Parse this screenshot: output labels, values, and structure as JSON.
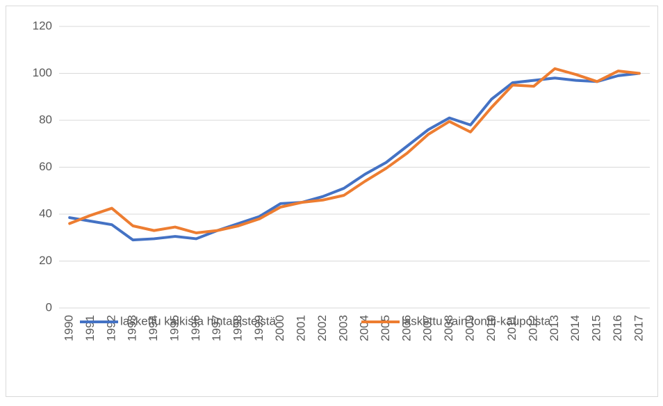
{
  "chart_data": {
    "type": "line",
    "categories": [
      "1990",
      "1991",
      "1992",
      "1993",
      "1994",
      "1995",
      "1996",
      "1997",
      "1998",
      "1999",
      "2000",
      "2001",
      "2002",
      "2003",
      "2004",
      "2005",
      "2006",
      "2007",
      "2008",
      "2009",
      "2010",
      "2011",
      "2012",
      "2013",
      "2014",
      "2015",
      "2016",
      "2017"
    ],
    "series": [
      {
        "name": "laskettu kaikista hintapisteistä",
        "color": "#4472c4",
        "values": [
          38.5,
          37,
          35.5,
          29,
          29.5,
          30.5,
          29.5,
          33,
          36,
          39,
          44.5,
          45,
          47.5,
          51,
          57,
          62,
          69,
          76,
          81,
          78,
          89,
          96,
          97,
          98,
          97,
          96.5,
          99,
          100
        ]
      },
      {
        "name": "laskettu vain tontti-kaupoista",
        "color": "#ed7d31",
        "values": [
          36,
          39.5,
          42.5,
          35,
          33,
          34.5,
          32,
          33,
          35,
          38,
          43,
          45,
          46,
          48,
          54,
          59.5,
          66,
          74,
          79.5,
          75,
          85.5,
          95,
          94.5,
          102,
          99.5,
          96.5,
          101,
          100
        ]
      }
    ],
    "ylim": [
      0,
      120
    ],
    "yticks": [
      0,
      20,
      40,
      60,
      80,
      100,
      120
    ],
    "grid": true,
    "legend": "bottom"
  }
}
